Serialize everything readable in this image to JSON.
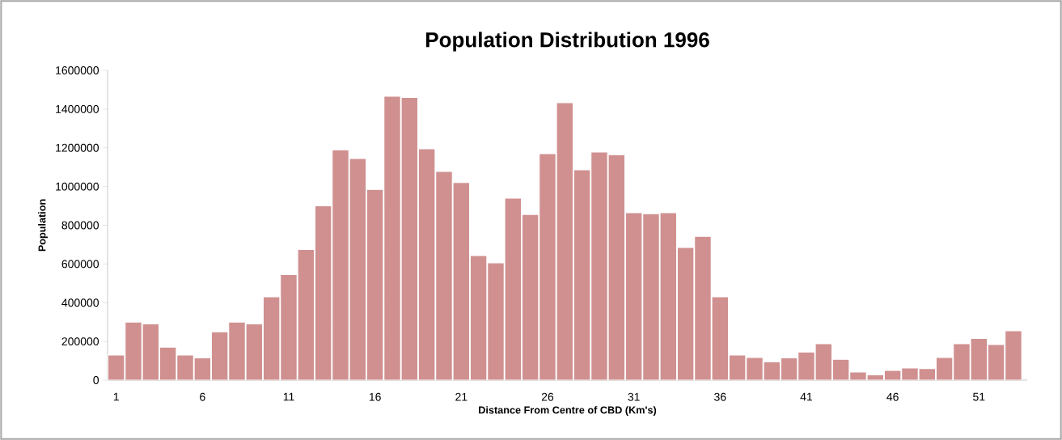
{
  "chart_data": {
    "type": "bar",
    "title": "Population Distribution 1996",
    "xlabel": "Distance From Centre of CBD (Km's)",
    "ylabel": "Population",
    "categories": [
      "1",
      null,
      null,
      null,
      null,
      "6",
      null,
      null,
      null,
      null,
      "11",
      null,
      null,
      null,
      null,
      "16",
      null,
      null,
      null,
      null,
      "21",
      null,
      null,
      null,
      null,
      "26",
      null,
      null,
      null,
      null,
      "31",
      null,
      null,
      null,
      null,
      "36",
      null,
      null,
      null,
      null,
      "41",
      null,
      null,
      null,
      null,
      "46",
      null,
      null,
      null,
      null,
      "51",
      null,
      null
    ],
    "values": [
      130000,
      300000,
      290000,
      170000,
      130000,
      115000,
      250000,
      300000,
      290000,
      430000,
      545000,
      675000,
      900000,
      1190000,
      1145000,
      985000,
      1466000,
      1460000,
      1195000,
      1078000,
      1020000,
      643000,
      606000,
      940000,
      856000,
      1170000,
      1433000,
      1086000,
      1178000,
      1165000,
      865000,
      860000,
      865000,
      685000,
      743000,
      430000,
      130000,
      117000,
      95000,
      115000,
      145000,
      188000,
      108000,
      42000,
      27000,
      50000,
      63000,
      60000,
      117000,
      188000,
      215000,
      184000,
      255000
    ],
    "color": "#d09090",
    "ylim": [
      0,
      1600000
    ],
    "yticks": [
      0,
      200000,
      400000,
      600000,
      800000,
      1000000,
      1200000,
      1400000,
      1600000
    ]
  }
}
